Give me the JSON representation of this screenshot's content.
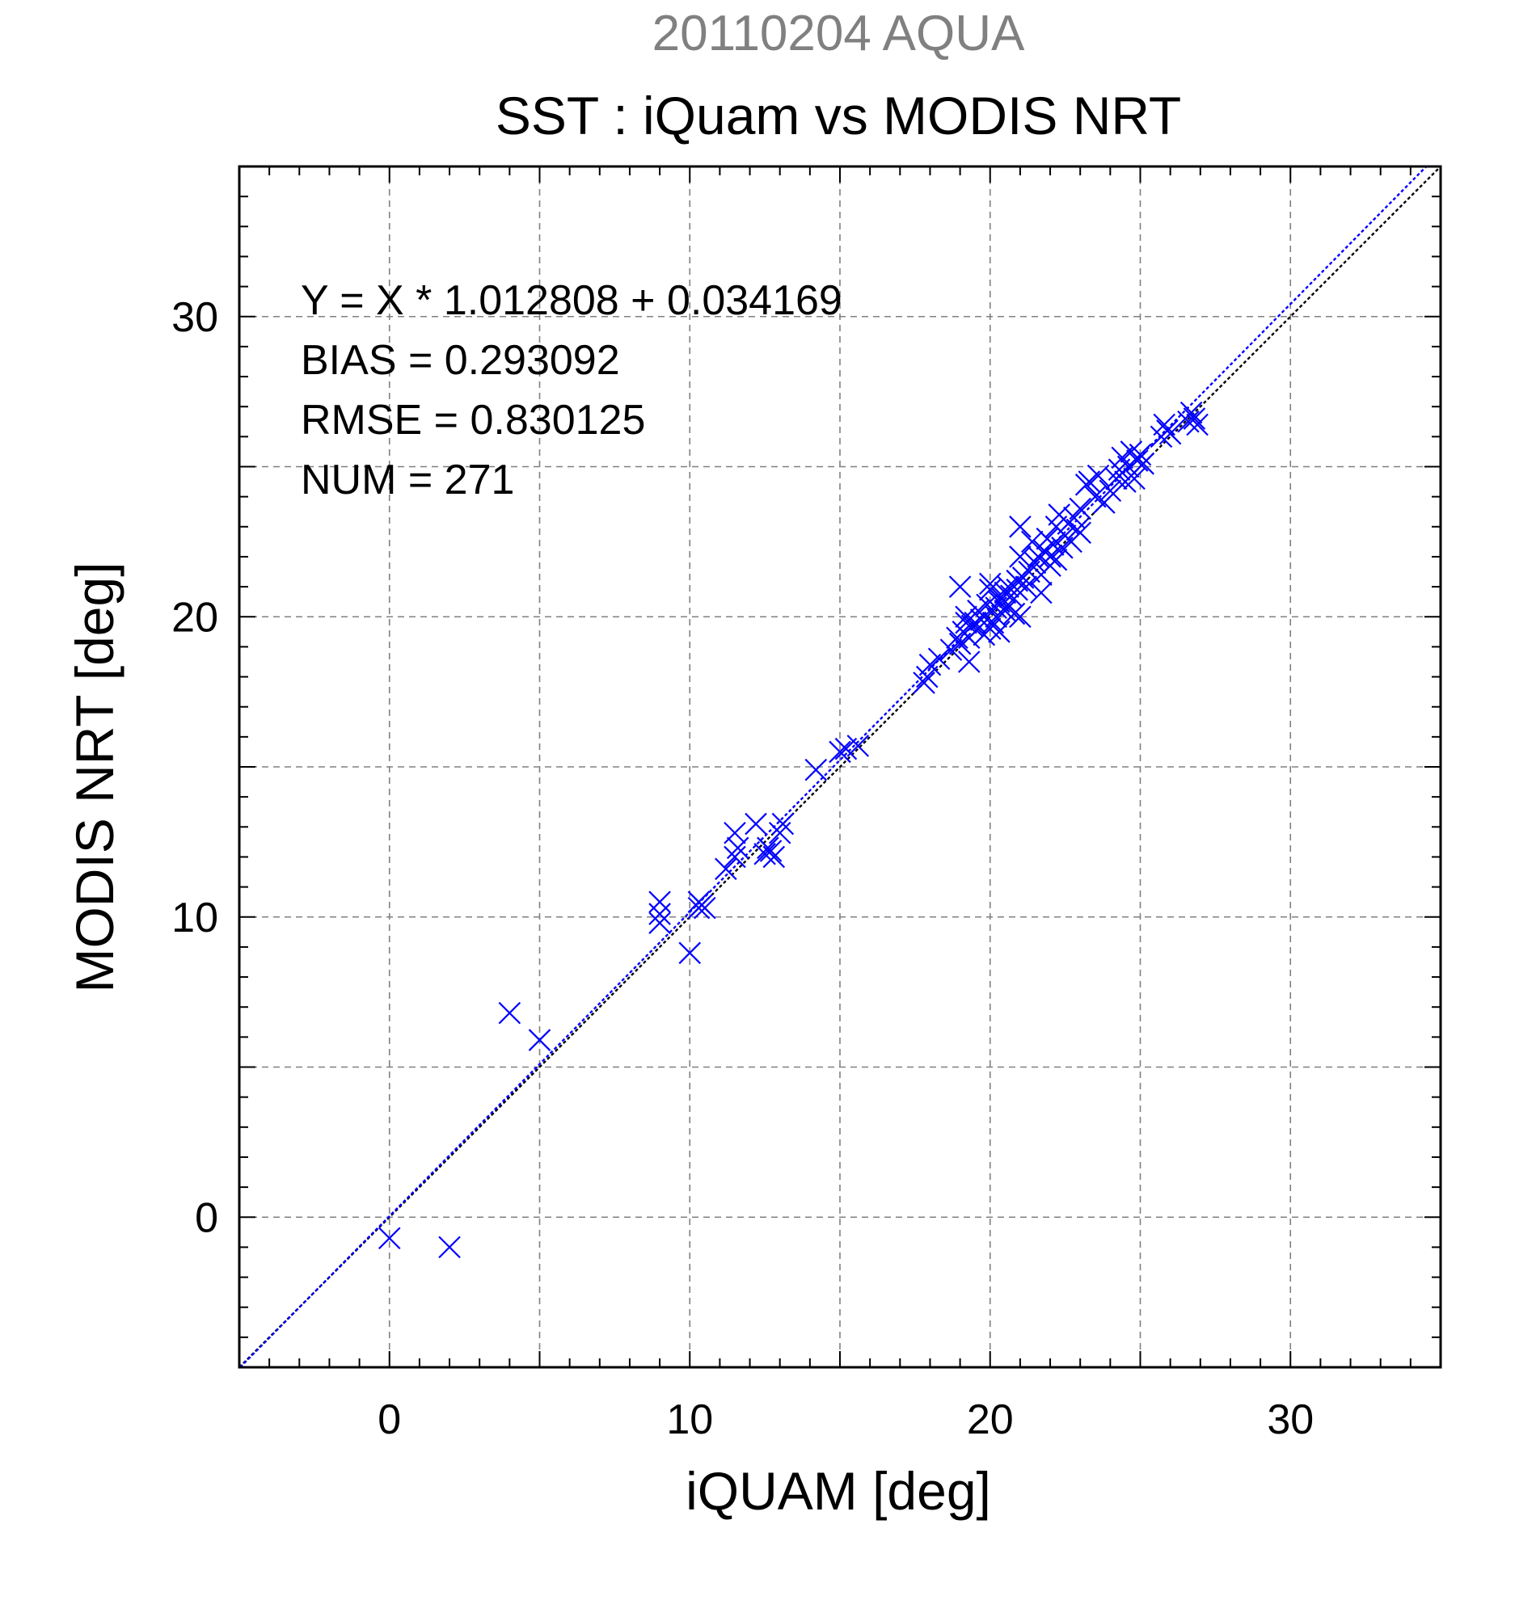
{
  "chart_data": {
    "type": "scatter",
    "suptitle": "20110204 AQUA",
    "title": "SST : iQuam vs MODIS NRT",
    "xlabel": "iQUAM [deg]",
    "ylabel": "MODIS NRT [deg]",
    "xlim": [
      -5,
      35
    ],
    "ylim": [
      -5,
      35
    ],
    "xticks": [
      0,
      10,
      20,
      30
    ],
    "yticks": [
      0,
      10,
      20,
      30
    ],
    "grid": true,
    "grid_step": 5,
    "marker": "x",
    "colors": {
      "points": "#0000ff",
      "fit_line": "#0000ff",
      "identity_line": "#000000",
      "suptitle": "#808080",
      "grid": "#808080"
    },
    "annotations": [
      "Y = X * 1.012808 + 0.034169",
      "BIAS = 0.293092",
      "RMSE = 0.830125",
      "NUM = 271"
    ],
    "lines": [
      {
        "kind": "identity",
        "slope": 1.0,
        "intercept": 0.0,
        "style": "dotted"
      },
      {
        "kind": "fit",
        "slope": 1.012808,
        "intercept": 0.034169,
        "style": "dotted"
      }
    ],
    "points": [
      [
        0.0,
        -0.7
      ],
      [
        2.0,
        -1.0
      ],
      [
        4.0,
        6.8
      ],
      [
        5.0,
        5.9
      ],
      [
        9.0,
        9.8
      ],
      [
        9.0,
        10.1
      ],
      [
        9.0,
        10.5
      ],
      [
        10.0,
        8.8
      ],
      [
        10.3,
        10.3
      ],
      [
        10.4,
        10.4
      ],
      [
        10.5,
        10.3
      ],
      [
        10.3,
        10.5
      ],
      [
        11.2,
        11.6
      ],
      [
        11.5,
        12.0
      ],
      [
        11.6,
        12.3
      ],
      [
        11.5,
        12.8
      ],
      [
        12.2,
        13.1
      ],
      [
        12.5,
        12.1
      ],
      [
        12.7,
        12.2
      ],
      [
        12.8,
        12.0
      ],
      [
        12.6,
        12.3
      ],
      [
        13.0,
        12.8
      ],
      [
        13.1,
        13.1
      ],
      [
        14.2,
        14.9
      ],
      [
        15.0,
        15.5
      ],
      [
        15.2,
        15.6
      ],
      [
        15.6,
        15.7
      ],
      [
        17.8,
        17.8
      ],
      [
        17.9,
        18.0
      ],
      [
        18.0,
        18.4
      ],
      [
        18.3,
        18.6
      ],
      [
        18.7,
        18.9
      ],
      [
        18.9,
        19.3
      ],
      [
        19.0,
        19.1
      ],
      [
        19.0,
        21.0
      ],
      [
        19.1,
        19.5
      ],
      [
        19.2,
        19.8
      ],
      [
        19.2,
        20.0
      ],
      [
        19.3,
        19.3
      ],
      [
        19.3,
        18.5
      ],
      [
        19.4,
        19.7
      ],
      [
        19.5,
        19.8
      ],
      [
        19.6,
        19.6
      ],
      [
        19.6,
        20.2
      ],
      [
        19.7,
        19.9
      ],
      [
        19.8,
        19.4
      ],
      [
        19.9,
        20.4
      ],
      [
        20.0,
        19.6
      ],
      [
        20.0,
        20.9
      ],
      [
        20.0,
        21.1
      ],
      [
        20.1,
        19.8
      ],
      [
        20.2,
        20.0
      ],
      [
        20.2,
        20.3
      ],
      [
        20.3,
        20.5
      ],
      [
        20.3,
        19.5
      ],
      [
        20.4,
        20.6
      ],
      [
        20.5,
        20.2
      ],
      [
        20.5,
        20.8
      ],
      [
        20.6,
        20.4
      ],
      [
        20.6,
        21.0
      ],
      [
        20.7,
        20.7
      ],
      [
        20.8,
        20.1
      ],
      [
        20.9,
        20.9
      ],
      [
        20.9,
        21.2
      ],
      [
        21.0,
        20.0
      ],
      [
        21.0,
        22.0
      ],
      [
        21.0,
        23.0
      ],
      [
        21.1,
        21.3
      ],
      [
        21.2,
        21.0
      ],
      [
        21.3,
        21.5
      ],
      [
        21.4,
        22.5
      ],
      [
        21.5,
        21.8
      ],
      [
        21.6,
        22.0
      ],
      [
        21.7,
        21.4
      ],
      [
        21.7,
        20.8
      ],
      [
        21.8,
        22.2
      ],
      [
        21.9,
        22.6
      ],
      [
        22.0,
        21.7
      ],
      [
        22.0,
        22.0
      ],
      [
        22.1,
        22.4
      ],
      [
        22.2,
        21.9
      ],
      [
        22.2,
        23.0
      ],
      [
        22.3,
        23.4
      ],
      [
        22.4,
        22.3
      ],
      [
        22.5,
        22.7
      ],
      [
        22.6,
        23.1
      ],
      [
        22.7,
        22.5
      ],
      [
        22.8,
        23.3
      ],
      [
        22.9,
        22.9
      ],
      [
        23.0,
        22.8
      ],
      [
        23.0,
        23.6
      ],
      [
        23.2,
        24.4
      ],
      [
        23.3,
        24.5
      ],
      [
        23.5,
        24.0
      ],
      [
        23.6,
        24.7
      ],
      [
        23.8,
        23.8
      ],
      [
        24.0,
        24.2
      ],
      [
        24.2,
        24.6
      ],
      [
        24.3,
        24.9
      ],
      [
        24.4,
        25.3
      ],
      [
        24.5,
        24.5
      ],
      [
        24.6,
        25.0
      ],
      [
        24.7,
        25.5
      ],
      [
        24.8,
        24.6
      ],
      [
        24.9,
        25.2
      ],
      [
        25.0,
        25.4
      ],
      [
        25.1,
        25.1
      ],
      [
        25.7,
        26.0
      ],
      [
        25.8,
        26.4
      ],
      [
        25.9,
        26.2
      ],
      [
        26.0,
        26.1
      ],
      [
        26.6,
        26.5
      ],
      [
        26.7,
        26.8
      ],
      [
        26.8,
        26.6
      ],
      [
        26.9,
        26.4
      ]
    ]
  }
}
